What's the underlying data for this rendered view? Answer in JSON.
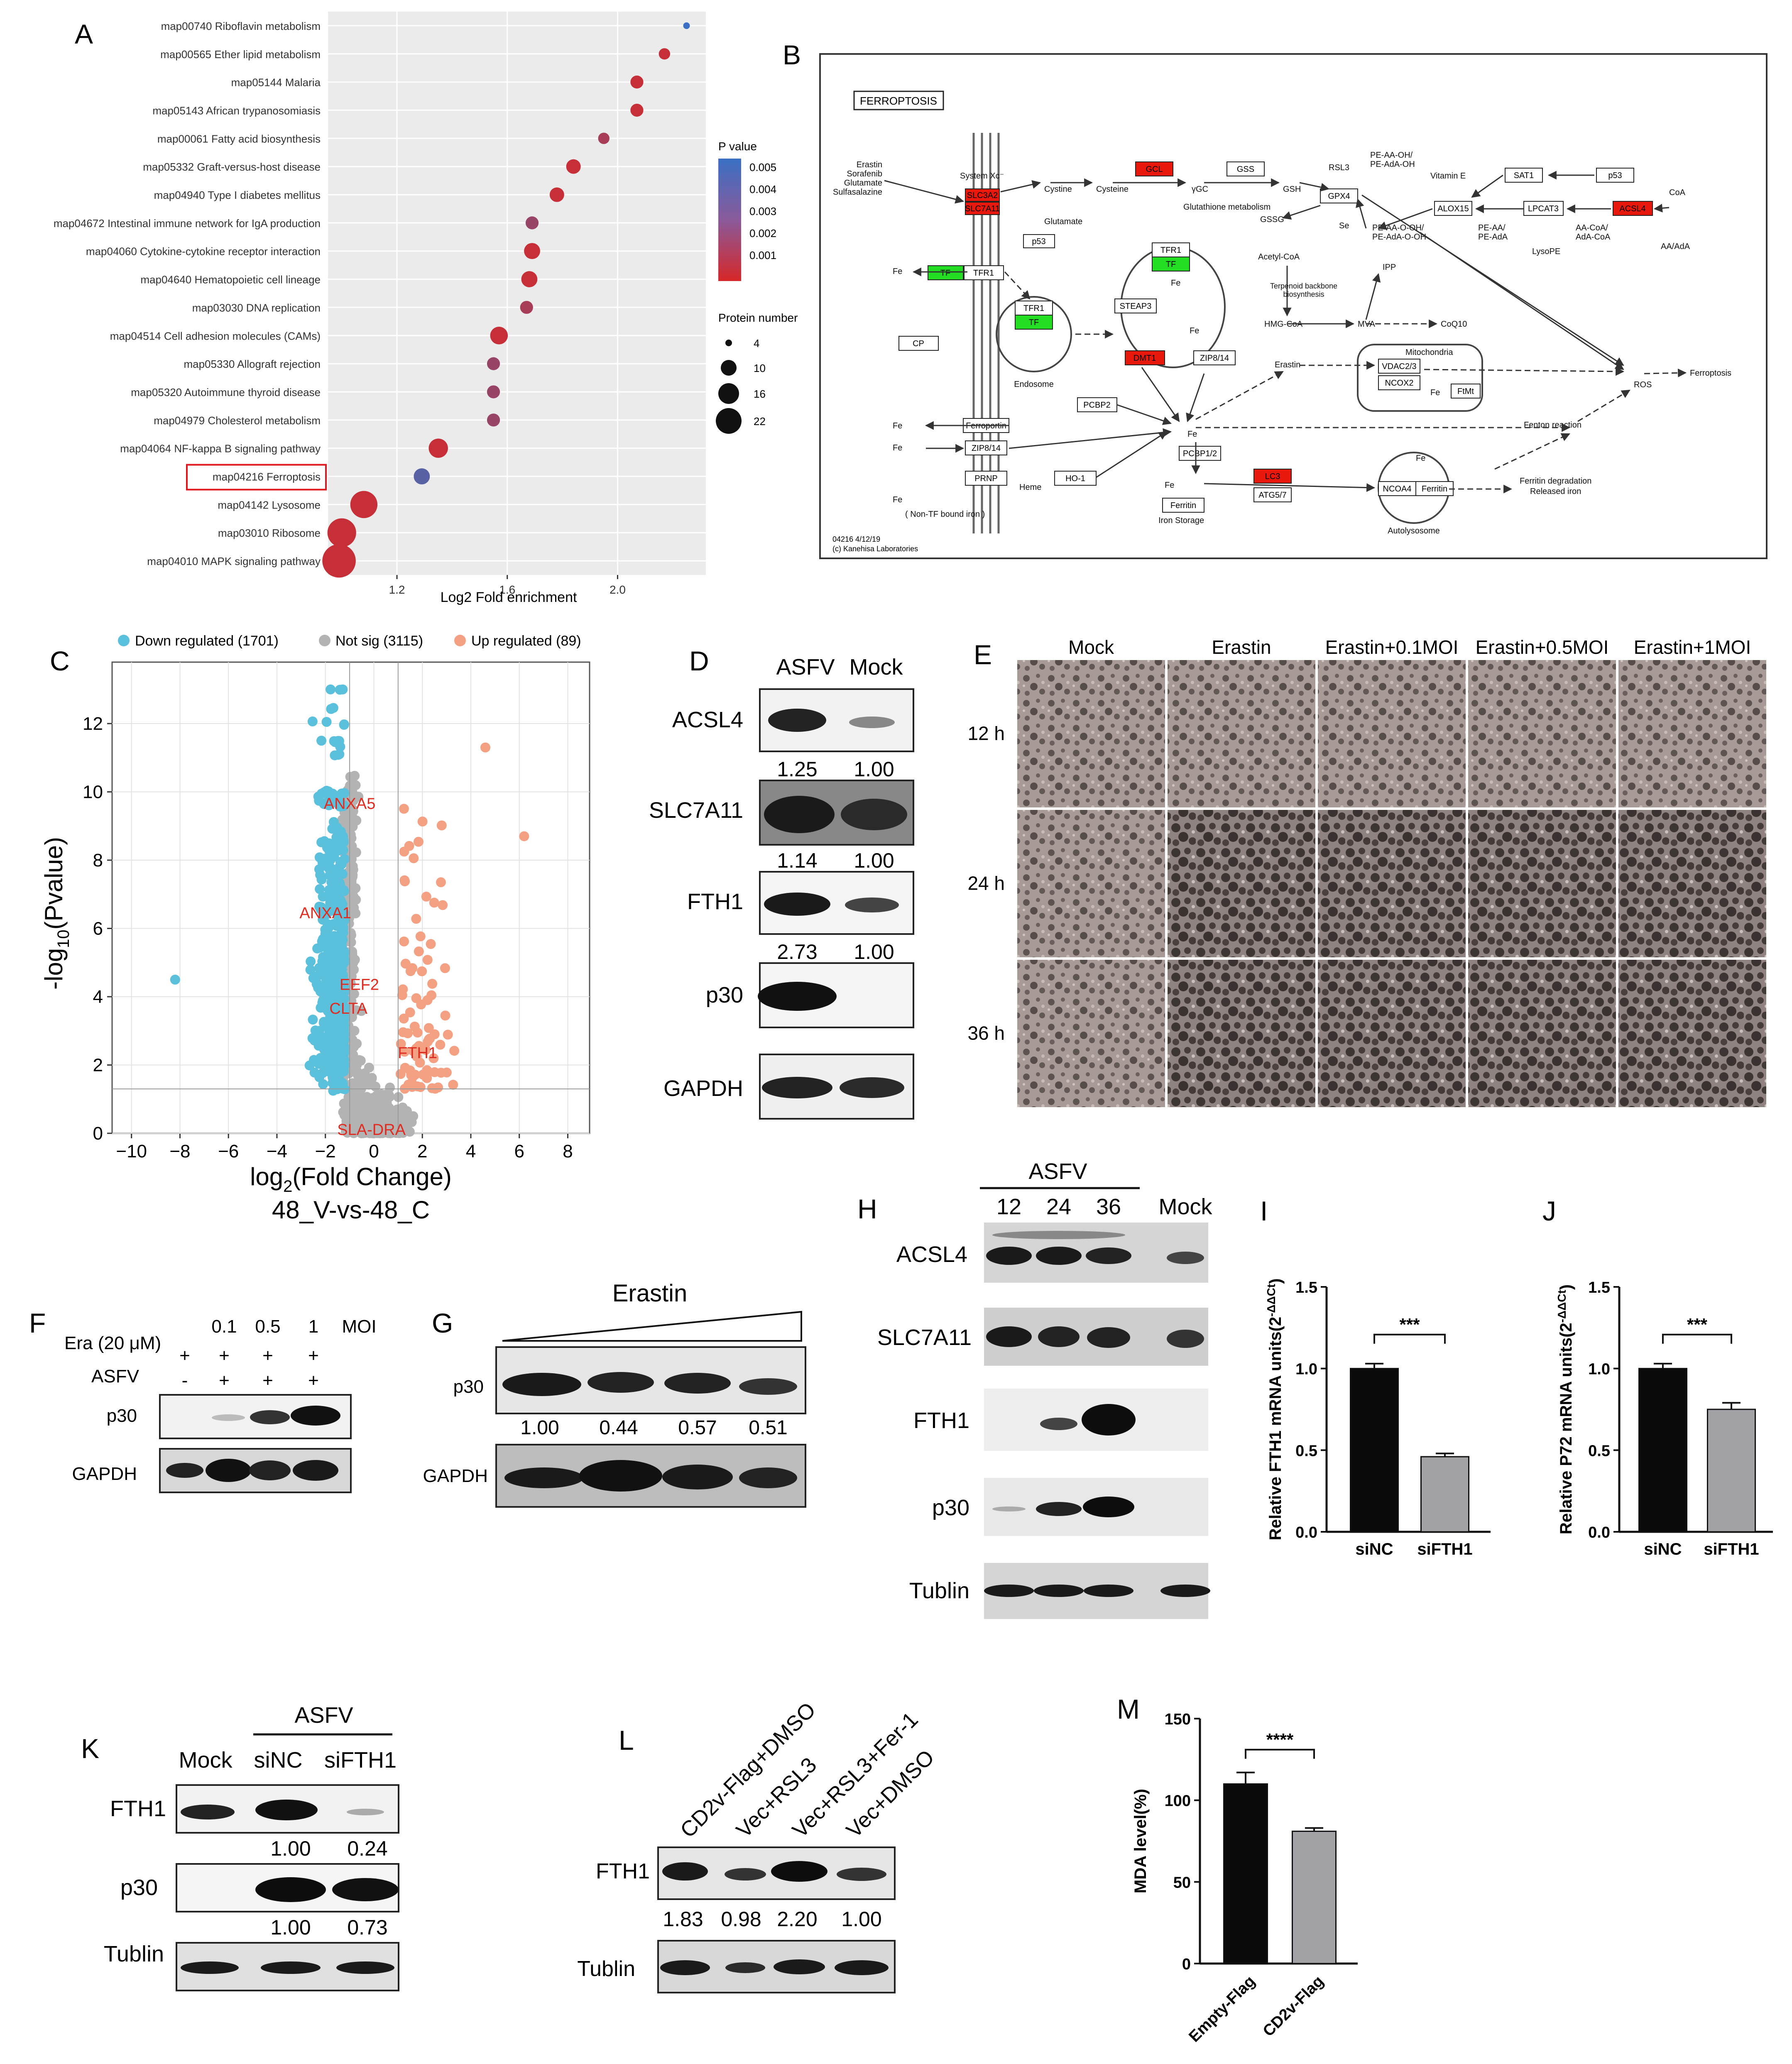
{
  "panels": {
    "A": "A",
    "B": "B",
    "C": "C",
    "D": "D",
    "E": "E",
    "F": "F",
    "G": "G",
    "H": "H",
    "I": "I",
    "J": "J",
    "K": "K",
    "L": "L",
    "M": "M"
  },
  "chart_data": [
    {
      "panel": "A",
      "type": "scatter",
      "xlabel": "Log2 Fold enrichment",
      "xticks": [
        1.2,
        1.6,
        2.0
      ],
      "xlim": [
        0.95,
        2.32
      ],
      "highlighted": "map04216 Ferroptosis",
      "legend_pvalue_title": "P value",
      "legend_pvalue_ticks": [
        "0.005",
        "0.004",
        "0.003",
        "0.002",
        "0.001"
      ],
      "legend_size_title": "Protein number",
      "legend_size_values": [
        4,
        10,
        16,
        22
      ],
      "colors": {
        "low_p": "#d62728",
        "high_p": "#3a6fc4",
        "mid_p": "#8a5a9a"
      },
      "pathways": [
        {
          "label": "map00740 Riboflavin metabolism",
          "x": 2.25,
          "p": 0.005,
          "n": 3
        },
        {
          "label": "map00565 Ether lipid metabolism",
          "x": 2.17,
          "p": 0.0005,
          "n": 6
        },
        {
          "label": "map05144 Malaria",
          "x": 2.07,
          "p": 0.0005,
          "n": 7
        },
        {
          "label": "map05143 African trypanosomiasis",
          "x": 2.07,
          "p": 0.0005,
          "n": 7
        },
        {
          "label": "map00061 Fatty acid biosynthesis",
          "x": 1.95,
          "p": 0.0015,
          "n": 6
        },
        {
          "label": "map05332 Graft-versus-host disease",
          "x": 1.84,
          "p": 0.0005,
          "n": 8
        },
        {
          "label": "map04940 Type I diabetes mellitus",
          "x": 1.78,
          "p": 0.0005,
          "n": 8
        },
        {
          "label": "map04672 Intestinal immune network for IgA production",
          "x": 1.69,
          "p": 0.002,
          "n": 7
        },
        {
          "label": "map04060 Cytokine-cytokine receptor interaction",
          "x": 1.69,
          "p": 0.0005,
          "n": 9
        },
        {
          "label": "map04640 Hematopoietic cell lineage",
          "x": 1.68,
          "p": 0.0005,
          "n": 9
        },
        {
          "label": "map03030 DNA replication",
          "x": 1.67,
          "p": 0.0015,
          "n": 7
        },
        {
          "label": "map04514 Cell adhesion molecules (CAMs)",
          "x": 1.57,
          "p": 0.0005,
          "n": 10
        },
        {
          "label": "map05330 Allograft rejection",
          "x": 1.55,
          "p": 0.002,
          "n": 7
        },
        {
          "label": "map05320 Autoimmune thyroid disease",
          "x": 1.55,
          "p": 0.002,
          "n": 7
        },
        {
          "label": "map04979 Cholesterol metabolism",
          "x": 1.55,
          "p": 0.002,
          "n": 7
        },
        {
          "label": "map04064 NF-kappa B signaling pathway",
          "x": 1.35,
          "p": 0.0005,
          "n": 11
        },
        {
          "label": "map04216 Ferroptosis",
          "x": 1.29,
          "p": 0.004,
          "n": 9
        },
        {
          "label": "map04142 Lysosome",
          "x": 1.08,
          "p": 0.0005,
          "n": 16
        },
        {
          "label": "map03010 Ribosome",
          "x": 1.0,
          "p": 0.0005,
          "n": 17
        },
        {
          "label": "map04010 MAPK signaling pathway",
          "x": 0.99,
          "p": 0.0005,
          "n": 20
        }
      ]
    },
    {
      "panel": "C",
      "type": "scatter",
      "xlabel_main": "log",
      "xlabel_sub": "2",
      "xlabel_rest": "(Fold Change)",
      "xlabel2": "48_V-vs-48_C",
      "ylabel_main": "-log",
      "ylabel_sub": "10",
      "ylabel_rest": "(Pvalue)",
      "xticks": [
        -10,
        -8,
        -6,
        -4,
        -2,
        0,
        2,
        4,
        6,
        8
      ],
      "yticks": [
        0,
        2,
        4,
        6,
        8,
        10,
        12
      ],
      "xlim": [
        -10.8,
        8.9
      ],
      "ylim": [
        0,
        13.8
      ],
      "legend": [
        "Down regulated (1701)",
        "Not sig (3115)",
        "Up regulated (89)"
      ],
      "colors": {
        "down": "#5bc0dc",
        "notsig": "#b3b3b3",
        "up": "#f4a183",
        "label": "#e02b20"
      },
      "annotations": [
        {
          "text": "ANXA5",
          "x": -1.0,
          "y": 9.5
        },
        {
          "text": "ANXA1",
          "x": -2.0,
          "y": 6.3
        },
        {
          "text": "EEF2",
          "x": -0.6,
          "y": 4.2
        },
        {
          "text": "CLTA",
          "x": -1.05,
          "y": 3.5
        },
        {
          "text": "FTH1",
          "x": 1.8,
          "y": 2.2
        },
        {
          "text": "SLA-DRA",
          "x": -0.1,
          "y": -0.05
        }
      ]
    },
    {
      "panel": "I",
      "type": "bar",
      "ylabel": "Relative FTH1 mRNA units(2",
      "ylabel_sup": "-ΔΔCt",
      "ylabel_end": ")",
      "categories": [
        "siNC",
        "siFTH1"
      ],
      "values": [
        1.0,
        0.46
      ],
      "errors": [
        0.03,
        0.02
      ],
      "ylim": [
        0,
        1.5
      ],
      "yticks": [
        "0.0",
        "0.5",
        "1.0",
        "1.5"
      ],
      "significance": "***"
    },
    {
      "panel": "J",
      "type": "bar",
      "ylabel": "Relative P72 mRNA units(2",
      "ylabel_sup": "-ΔΔCt",
      "ylabel_end": ")",
      "categories": [
        "siNC",
        "siFTH1"
      ],
      "values": [
        1.0,
        0.75
      ],
      "errors": [
        0.03,
        0.04
      ],
      "ylim": [
        0,
        1.5
      ],
      "yticks": [
        "0.0",
        "0.5",
        "1.0",
        "1.5"
      ],
      "significance": "***"
    },
    {
      "panel": "M",
      "type": "bar",
      "ylabel": "MDA level(%)",
      "categories": [
        "Empty-Flag",
        "CD2v-Flag"
      ],
      "values": [
        110,
        81
      ],
      "errors": [
        7,
        2
      ],
      "ylim": [
        0,
        150
      ],
      "yticks": [
        "0",
        "50",
        "100",
        "150"
      ],
      "significance": "****"
    }
  ],
  "kegg": {
    "title": "FERROPTOSIS",
    "footer1": "04216 4/12/19",
    "footer2": "(c) Kanehisa Laboratories",
    "boxes": {
      "slc3a2": "SLC3A2",
      "slc7a11": "SLC7A11",
      "gcl": "GCL",
      "gss": "GSS",
      "gpx4": "GPX4",
      "sat1": "SAT1",
      "p53a": "p53",
      "p53b": "p53",
      "alox15": "ALOX15",
      "lpcat3": "LPCAT3",
      "acsl4": "ACSL4",
      "tf": "TF",
      "tfr1": "TFR1",
      "tfr1b": "TFR1",
      "tfb": "TF",
      "tfr1c": "TFR1",
      "tfc": "TF",
      "steap3": "STEAP3",
      "dmt1": "DMT1",
      "zip814": "ZIP8/14",
      "cp": "CP",
      "pcbp2": "PCBP2",
      "ferroportin": "Ferroportin",
      "zip814b": "ZIP8/14",
      "prnp": "PRNP",
      "ho1": "HO-1",
      "pcbp12": "PCBP1/2",
      "ferritin": "Ferritin",
      "lc3": "LC3",
      "atg57": "ATG5/7",
      "ncoa4": "NCOA4",
      "ferritin2": "Ferritin",
      "vdac23": "VDAC2/3",
      "ncox2": "NCOX2",
      "ftmt": "FtMt"
    },
    "labels": {
      "erastin": "Erastin",
      "sorafenib": "Sorafenib",
      "glutamate": "Glutamate",
      "sulfasalazine": "Sulfasalazine",
      "systemxc": "System Xc⁻",
      "cystine": "Cystine",
      "cysteine": "Cysteine",
      "glutamate2": "Glutamate",
      "ygc": "γGC",
      "gsh": "GSH",
      "gssg": "GSSG",
      "glutmet": "Glutathione metabolism",
      "rsl3": "RSL3",
      "se": "Se",
      "vitamine": "Vitamin E",
      "peaaooh": "PE-AA-OH/",
      "peadaoh": "PE-AdA-OH",
      "peaaoooh": "PE-AA-O-OH/",
      "peadaooh": "PE-AdA-O-OH",
      "peaa": "PE-AA/",
      "peada": "PE-AdA",
      "lysope": "LysoPE",
      "aacoa": "AA-CoA/",
      "adacoa": "AdA-CoA",
      "coa": "CoA",
      "aaada": "AA/AdA",
      "acetylcoa": "Acetyl-CoA",
      "terpenoid": "Terpenoid backbone",
      "biosynthesis": "biosynthesis",
      "hmgcoa": "HMG-CoA",
      "mva": "MVA",
      "ipp": "IPP",
      "coq10": "CoQ10",
      "endosome": "Endosome",
      "erastin2": "Erastin",
      "mitochondria": "Mitochondria",
      "ros": "ROS",
      "ferroptosis": "Ferroptosis",
      "fenton": "Fenton reaction",
      "heme": "Heme",
      "nontf": "( Non-TF bound iron )",
      "ironstorage": "Iron Storage",
      "autolysosome": "Autolysosome",
      "ferritindeg": "Ferritin degradation",
      "released": "Released iron",
      "fe": "Fe"
    }
  },
  "blots": {
    "D": {
      "lanes": [
        "ASFV",
        "Mock"
      ],
      "rows": [
        "ACSL4",
        "SLC7A11",
        "FTH1",
        "p30",
        "GAPDH"
      ],
      "quant": [
        [
          "1.25",
          "1.00"
        ],
        [
          "1.14",
          "1.00"
        ],
        [
          "2.73",
          "1.00"
        ]
      ]
    },
    "E": {
      "columns": [
        "Mock",
        "Erastin",
        "Erastin+0.1MOI",
        "Erastin+0.5MOI",
        "Erastin+1MOI"
      ],
      "rows": [
        "12 h",
        "24 h",
        "36 h"
      ]
    },
    "F": {
      "header": [
        "0.1",
        "0.5",
        "1",
        "MOI"
      ],
      "era_label": "Era (20 μM)",
      "asfv_label": "ASFV",
      "era_signs": [
        "+",
        "+",
        "+",
        "+"
      ],
      "asfv_signs": [
        "-",
        "+",
        "+",
        "+"
      ],
      "rows": [
        "p30",
        "GAPDH"
      ]
    },
    "G": {
      "treatment": "Erastin",
      "rows": [
        "p30",
        "GAPDH"
      ],
      "quant": [
        "1.00",
        "0.44",
        "0.57",
        "0.51"
      ]
    },
    "H": {
      "group": "ASFV",
      "lanes": [
        "12",
        "24",
        "36",
        "Mock"
      ],
      "rows": [
        "ACSL4",
        "SLC7A11",
        "FTH1",
        "p30",
        "Tublin"
      ]
    },
    "K": {
      "group": "ASFV",
      "lanes": [
        "Mock",
        "siNC",
        "siFTH1"
      ],
      "rows": [
        "FTH1",
        "p30",
        "Tublin"
      ],
      "quant": [
        [
          "1.00",
          "0.24"
        ],
        [
          "1.00",
          "0.73"
        ]
      ]
    },
    "L": {
      "lanes": [
        "CD2v-Flag+DMSO",
        "Vec+RSL3",
        "Vec+RSL3+Fer-1",
        "Vec+DMSO"
      ],
      "rows": [
        "FTH1",
        "Tublin"
      ],
      "quant": [
        "1.83",
        "0.98",
        "2.20",
        "1.00"
      ]
    }
  }
}
